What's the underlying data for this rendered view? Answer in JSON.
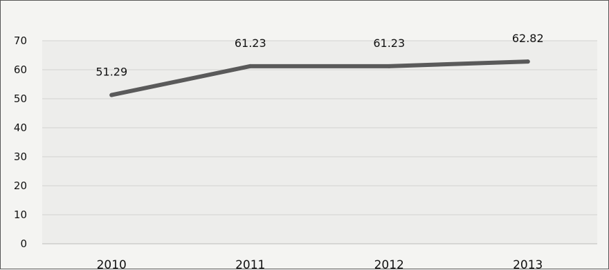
{
  "chart_data": {
    "type": "line",
    "categories": [
      "2010",
      "2011",
      "2012",
      "2013"
    ],
    "series": [
      {
        "values": [
          51.29,
          61.23,
          61.23,
          62.82
        ],
        "color": "#5a5a5a"
      }
    ],
    "data_labels": [
      "51.29",
      "61.23",
      "61.23",
      "62.82"
    ],
    "yticks": [
      0,
      10,
      20,
      30,
      40,
      50,
      60,
      70
    ],
    "ylim": [
      0,
      70
    ],
    "grid": true,
    "legend": "none"
  }
}
